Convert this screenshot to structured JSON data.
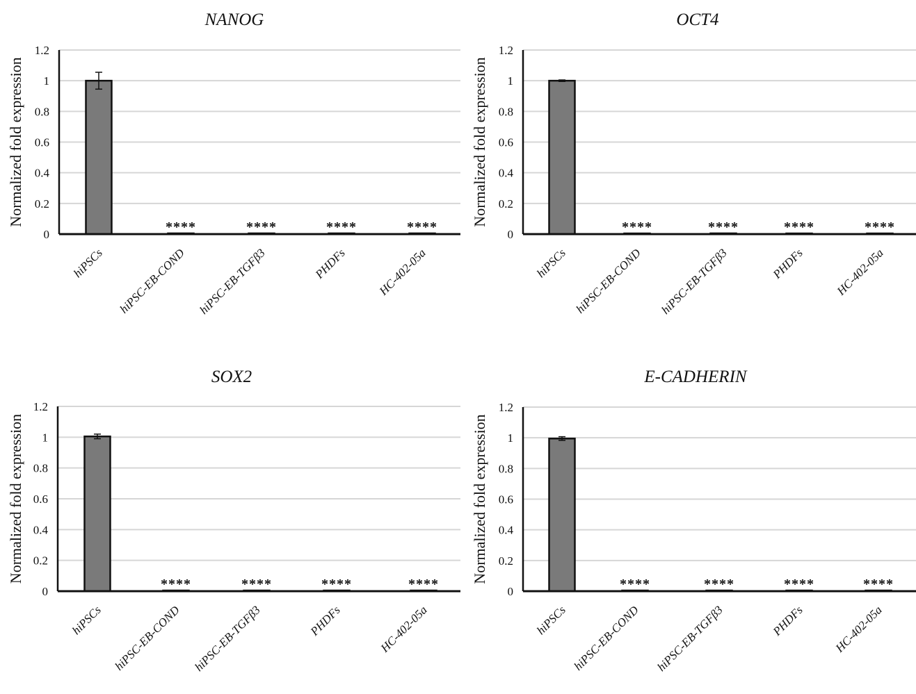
{
  "chart_data": [
    {
      "type": "bar",
      "title": "NANOG",
      "ylabel": "Normalized fold expression",
      "categories": [
        "hiPSCs",
        "hiPSC-EB-COND",
        "hiPSC-EB-TGFβ3",
        "PHDFs",
        "HC-402-05a"
      ],
      "values": [
        1,
        0.005,
        0.005,
        0.005,
        0.005
      ],
      "errors": [
        0.055,
        0,
        0,
        0,
        0
      ],
      "annotations": [
        "",
        "****",
        "****",
        "****",
        "****"
      ],
      "ylim": [
        0,
        1.2
      ],
      "yticks": [
        "0",
        "0.2",
        "0.4",
        "0.6",
        "0.8",
        "1",
        "1.2"
      ],
      "grid": true
    },
    {
      "type": "bar",
      "title": "OCT4",
      "ylabel": "Normalized fold expression",
      "categories": [
        "hiPSCs",
        "hiPSC-EB-COND",
        "hiPSC-EB-TGFβ3",
        "PHDFs",
        "HC-402-05a"
      ],
      "values": [
        1,
        0.002,
        0.005,
        0.002,
        0.002
      ],
      "errors": [
        0.005,
        0,
        0,
        0,
        0
      ],
      "annotations": [
        "",
        "****",
        "****",
        "****",
        "****"
      ],
      "ylim": [
        0,
        1.2
      ],
      "yticks": [
        "0",
        "0.2",
        "0.4",
        "0.6",
        "0.8",
        "1",
        "1.2"
      ],
      "grid": true
    },
    {
      "type": "bar",
      "title": "SOX2",
      "ylabel": "Normalized fold expression",
      "categories": [
        "hiPSCs",
        "hiPSC-EB-COND",
        "hiPSC-EB-TGFβ3",
        "PHDFs",
        "HC-402-05a"
      ],
      "values": [
        1.005,
        0.002,
        0.002,
        0.002,
        0.002
      ],
      "errors": [
        0.015,
        0,
        0,
        0,
        0
      ],
      "annotations": [
        "",
        "****",
        "****",
        "****",
        "****"
      ],
      "ylim": [
        0,
        1.2
      ],
      "yticks": [
        "0",
        "0.2",
        "0.4",
        "0.6",
        "0.8",
        "1",
        "1.2"
      ],
      "grid": true
    },
    {
      "type": "bar",
      "title": "E-CADHERIN",
      "ylabel": "Normalized fold expression",
      "categories": [
        "hiPSCs",
        "hiPSC-EB-COND",
        "hiPSC-EB-TGFβ3",
        "PHDFs",
        "HC-402-05a"
      ],
      "values": [
        0.995,
        0.002,
        0.002,
        0.002,
        0.002
      ],
      "errors": [
        0.012,
        0,
        0,
        0,
        0
      ],
      "annotations": [
        "",
        "****",
        "****",
        "****",
        "****"
      ],
      "ylim": [
        0,
        1.2
      ],
      "yticks": [
        "0",
        "0.2",
        "0.4",
        "0.6",
        "0.8",
        "1",
        "1.2"
      ],
      "grid": true
    }
  ],
  "colors": {
    "bar_fill": "#7a7a7a",
    "bar_stroke": "#111111",
    "grid": "#d6d6d6",
    "axis": "#111111"
  }
}
